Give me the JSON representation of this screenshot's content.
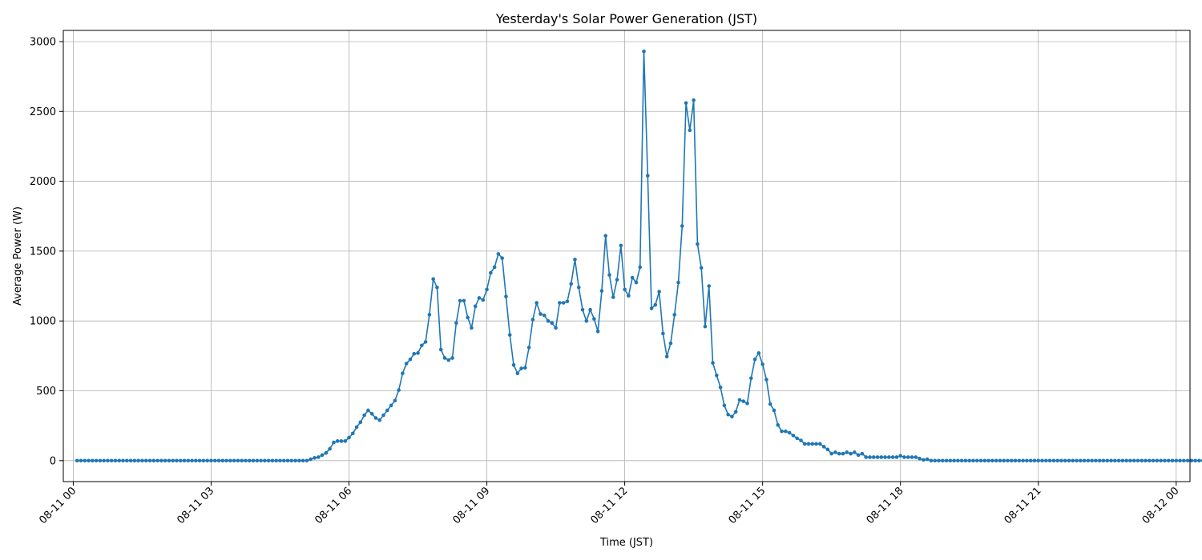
{
  "chart_data": {
    "type": "line",
    "title": "Yesterday's Solar Power Generation (JST)",
    "xlabel": "Time (JST)",
    "ylabel": "Average Power (W)",
    "x_start": "2024-08-11 00:05",
    "x_interval_minutes": 5,
    "xlim": [
      "2024-08-10 23:47",
      "2024-08-12 00:18"
    ],
    "ylim": [
      -150,
      3080
    ],
    "grid": true,
    "marker": "circle",
    "line_color": "#1f77b4",
    "x_ticks": [
      "08-11 00",
      "08-11 03",
      "08-11 06",
      "08-11 09",
      "08-11 12",
      "08-11 15",
      "08-11 18",
      "08-11 21",
      "08-12 00"
    ],
    "y_ticks": [
      "0",
      "500",
      "1000",
      "1500",
      "2000",
      "2500",
      "3000"
    ],
    "series": [
      {
        "values": [
          0,
          0,
          0,
          0,
          0,
          0,
          0,
          0,
          0,
          0,
          0,
          0,
          0,
          0,
          0,
          0,
          0,
          0,
          0,
          0,
          0,
          0,
          0,
          0,
          0,
          0,
          0,
          0,
          0,
          0,
          0,
          0,
          0,
          0,
          0,
          0,
          0,
          0,
          0,
          0,
          0,
          0,
          0,
          0,
          0,
          0,
          0,
          0,
          0,
          0,
          0,
          0,
          0,
          0,
          0,
          0,
          0,
          0,
          0,
          0,
          0,
          10,
          20,
          25,
          40,
          55,
          85,
          130,
          140,
          140,
          140,
          165,
          195,
          240,
          275,
          325,
          360,
          335,
          305,
          290,
          325,
          360,
          395,
          430,
          505,
          625,
          695,
          725,
          765,
          770,
          825,
          850,
          1045,
          1300,
          1240,
          795,
          735,
          720,
          735,
          985,
          1145,
          1145,
          1025,
          950,
          1105,
          1165,
          1150,
          1225,
          1345,
          1385,
          1480,
          1450,
          1175,
          900,
          685,
          625,
          660,
          665,
          810,
          1010,
          1130,
          1050,
          1040,
          1000,
          985,
          950,
          1130,
          1130,
          1140,
          1265,
          1440,
          1240,
          1080,
          1000,
          1080,
          1015,
          925,
          1215,
          1610,
          1330,
          1170,
          1295,
          1540,
          1225,
          1180,
          1310,
          1275,
          1385,
          2930,
          2040,
          1090,
          1115,
          1210,
          910,
          745,
          840,
          1045,
          1275,
          1680,
          2560,
          2365,
          2580,
          1550,
          1380,
          960,
          1250,
          700,
          610,
          525,
          395,
          330,
          315,
          350,
          435,
          425,
          410,
          590,
          725,
          770,
          690,
          580,
          405,
          360,
          255,
          210,
          210,
          200,
          180,
          160,
          145,
          120,
          120,
          120,
          120,
          120,
          100,
          80,
          50,
          60,
          50,
          50,
          60,
          50,
          60,
          40,
          50,
          25,
          25,
          25,
          25,
          25,
          25,
          25,
          25,
          25,
          35,
          25,
          25,
          25,
          25,
          15,
          5,
          10,
          0,
          0,
          0,
          0,
          0,
          0,
          0,
          0,
          0,
          0,
          0,
          0,
          0,
          0,
          0,
          0,
          0,
          0,
          0,
          0,
          0,
          0,
          0,
          0,
          0,
          0,
          0,
          0,
          0,
          0,
          0,
          0,
          0,
          0,
          0,
          0,
          0,
          0,
          0,
          0,
          0,
          0,
          0,
          0,
          0,
          0,
          0,
          0,
          0,
          0,
          0,
          0,
          0,
          0,
          0,
          0,
          0,
          0,
          0,
          0,
          0,
          0,
          0,
          0,
          0,
          0,
          0,
          0,
          0,
          0,
          0,
          0,
          0,
          0,
          0,
          0,
          0,
          0,
          0,
          0,
          0,
          0,
          0,
          0,
          0,
          0,
          0
        ]
      }
    ]
  }
}
